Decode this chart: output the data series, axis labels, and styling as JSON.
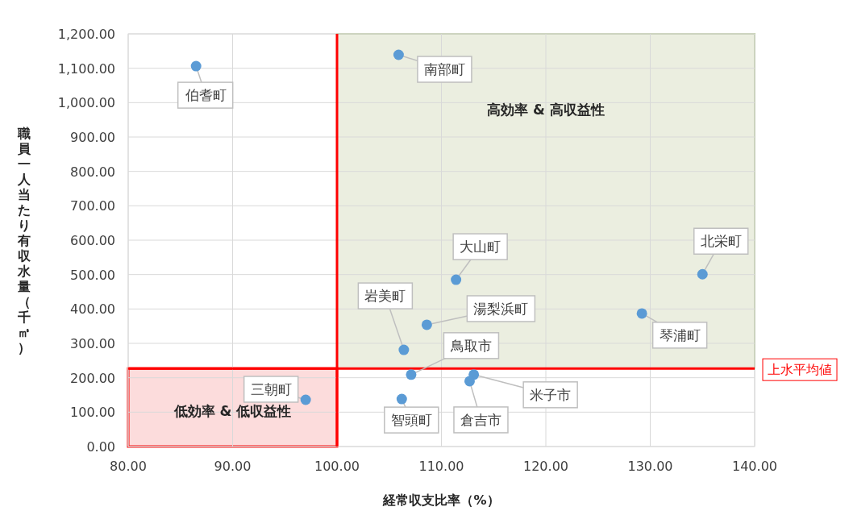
{
  "chart_data": {
    "type": "scatter",
    "xlabel": "経常収支比率（%）",
    "ylabel": "職員一人当たり有収水量（千㎥）",
    "x": [
      86.5,
      105.9,
      111.4,
      135.0,
      106.4,
      108.6,
      129.2,
      107.1,
      113.1,
      112.7,
      106.2,
      97.0
    ],
    "series": [
      {
        "color": "#5b9bd5",
        "values": [
          1106,
          1139,
          485,
          501,
          281,
          354,
          387,
          209,
          209,
          190,
          138,
          136
        ]
      }
    ],
    "xlim": [
      80,
      140
    ],
    "ylim": [
      0,
      1200
    ],
    "xticks": [
      {
        "value": 80,
        "label": "80.00"
      },
      {
        "value": 90,
        "label": "90.00"
      },
      {
        "value": 100,
        "label": "100.00"
      },
      {
        "value": 110,
        "label": "110.00"
      },
      {
        "value": 120,
        "label": "120.00"
      },
      {
        "value": 130,
        "label": "130.00"
      },
      {
        "value": 140,
        "label": "140.00"
      }
    ],
    "yticks": [
      {
        "value": 0,
        "label": "0.00"
      },
      {
        "value": 100,
        "label": "100.00"
      },
      {
        "value": 200,
        "label": "200.00"
      },
      {
        "value": 300,
        "label": "300.00"
      },
      {
        "value": 400,
        "label": "400.00"
      },
      {
        "value": 500,
        "label": "500.00"
      },
      {
        "value": 600,
        "label": "600.00"
      },
      {
        "value": 700,
        "label": "700.00"
      },
      {
        "value": 800,
        "label": "800.00"
      },
      {
        "value": 900,
        "label": "900.00"
      },
      {
        "value": 1000,
        "label": "1,000.00"
      },
      {
        "value": 1100,
        "label": "1,100.00"
      },
      {
        "value": 1200,
        "label": "1,200.00"
      }
    ],
    "grid": true,
    "marker": "circle",
    "ref_lines": [
      {
        "axis": "y",
        "value": 227,
        "label": "上水平均値",
        "color": "#ff0000"
      },
      {
        "axis": "x",
        "value": 100,
        "color": "#ff0000"
      }
    ],
    "bands": [
      {
        "axis": "x",
        "from": 100,
        "to": 140,
        "label": "高効率 & 高収益性",
        "color": "#ebeee0"
      },
      {
        "axis": "x",
        "from": 80,
        "to": 100,
        "label": "低効率 & 低収益性",
        "color": "#fcdcdc"
      }
    ],
    "annotations": [
      {
        "text": "伯耆町",
        "x": 86.5,
        "y": 1106
      },
      {
        "text": "南部町",
        "x": 105.9,
        "y": 1139
      },
      {
        "text": "大山町",
        "x": 111.4,
        "y": 485
      },
      {
        "text": "北栄町",
        "x": 135.0,
        "y": 501
      },
      {
        "text": "岩美町",
        "x": 106.4,
        "y": 281
      },
      {
        "text": "湯梨浜町",
        "x": 108.6,
        "y": 354
      },
      {
        "text": "琴浦町",
        "x": 129.2,
        "y": 387
      },
      {
        "text": "鳥取市",
        "x": 107.1,
        "y": 209
      },
      {
        "text": "米子市",
        "x": 113.1,
        "y": 209
      },
      {
        "text": "倉吉市",
        "x": 112.7,
        "y": 190
      },
      {
        "text": "智頭町",
        "x": 106.2,
        "y": 138
      },
      {
        "text": "三朝町",
        "x": 97.0,
        "y": 136
      }
    ]
  }
}
